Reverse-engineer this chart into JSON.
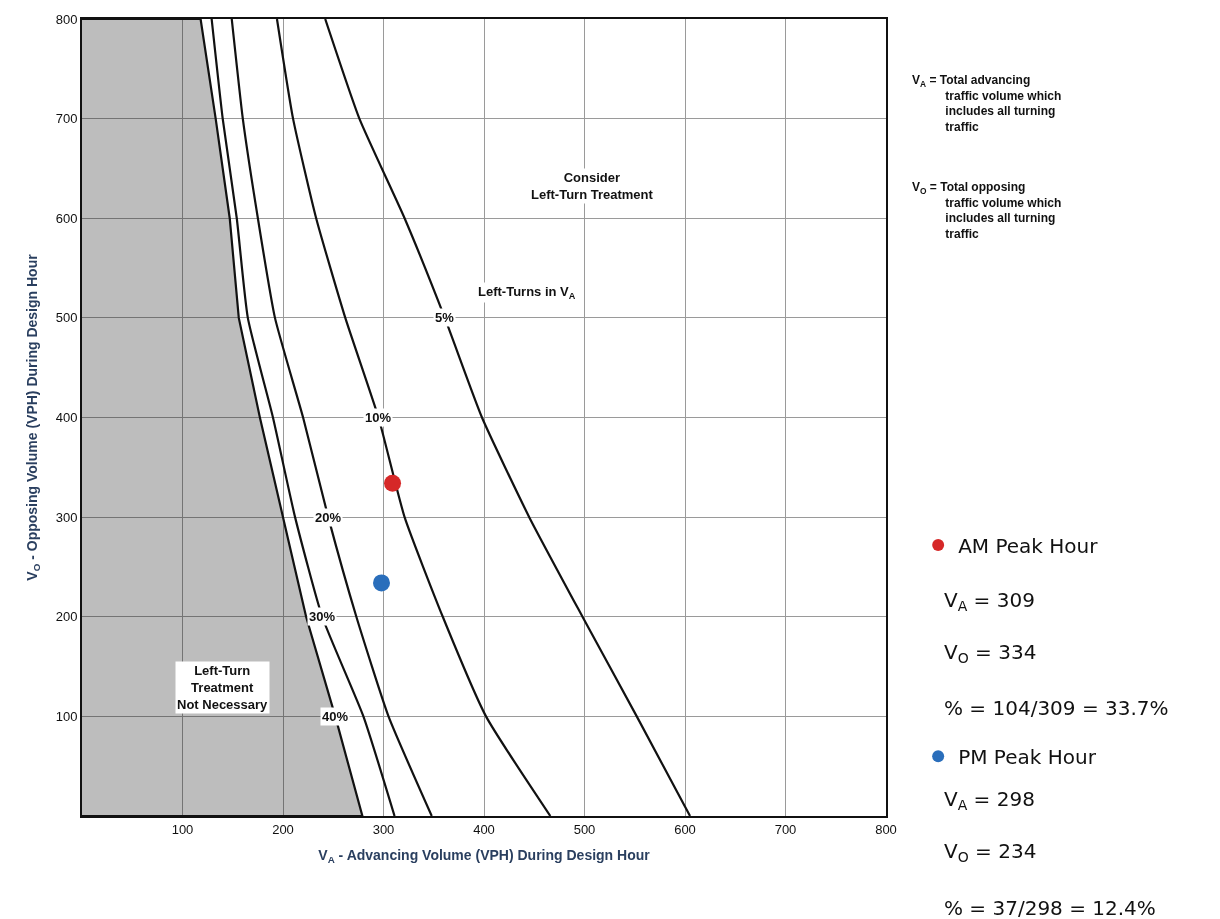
{
  "chart_data": {
    "type": "line",
    "xlabel": "V$_{A}$ - Advancing Volume (VPH) During Design Hour",
    "ylabel": "V$_{O}$ - Opposing Volume (VPH) During Design Hour",
    "xlim": [
      0,
      800
    ],
    "ylim": [
      0,
      800
    ],
    "xticks": [
      {
        "value": 0,
        "label": null
      },
      100,
      200,
      300,
      400,
      500,
      600,
      700,
      800
    ],
    "yticks": [
      {
        "value": 0,
        "label": null
      },
      100,
      200,
      300,
      400,
      500,
      600,
      700,
      800
    ],
    "grid": true,
    "legend": "right",
    "marker": "none",
    "series": [
      {
        "name": "5%",
        "color": "#111111",
        "x": [
          242,
          276,
          321,
          361,
          398,
          445,
          498,
          552,
          605
        ],
        "values": [
          800,
          700,
          600,
          500,
          400,
          300,
          200,
          100,
          0
        ]
      },
      {
        "name": "10%",
        "color": "#111111",
        "x": [
          194,
          210,
          233,
          262,
          295,
          321,
          359,
          402,
          466
        ],
        "values": [
          800,
          700,
          600,
          500,
          400,
          300,
          200,
          100,
          0
        ]
      },
      {
        "name": "20%",
        "color": "#111111",
        "x": [
          149,
          160,
          175,
          192,
          220,
          245,
          273,
          305,
          348
        ],
        "values": [
          800,
          700,
          600,
          500,
          400,
          300,
          200,
          100,
          0
        ]
      },
      {
        "name": "30%",
        "color": "#111111",
        "x": [
          129,
          140,
          154,
          165,
          190,
          212,
          239,
          280,
          311
        ],
        "values": [
          800,
          700,
          600,
          500,
          400,
          300,
          200,
          100,
          0
        ]
      },
      {
        "name": "40%",
        "type": "area",
        "color": "#111111",
        "x": [
          0,
          118,
          133,
          147,
          156,
          177,
          200,
          223,
          252,
          279,
          0
        ],
        "values": [
          800,
          800,
          700,
          600,
          500,
          400,
          300,
          200,
          100,
          0,
          0
        ]
      },
      {
        "name": "AM Peak Hour",
        "type": "scatter",
        "marker": "circle",
        "color": "#d62828",
        "x": [
          309
        ],
        "values": [
          334
        ]
      },
      {
        "name": "PM Peak Hour",
        "type": "scatter",
        "marker": "circle",
        "color": "#2a6ebb",
        "x": [
          298
        ],
        "values": [
          234
        ]
      }
    ],
    "annotations": [
      "Consider\nLeft-Turn Treatment",
      "Left-Turns in V$_{A}$",
      "Left-Turn\nTreatment\nNot Necessary",
      "V$_{A}$ = Total advancing\ntraffic volume which\nincludes all turning\ntraffic",
      "V$_{O}$ = Total opposing\ntraffic volume which\nincludes all turning\ntraffic",
      "V$_{A}$ = 309",
      "V$_{O}$ = 334",
      "% = 104/309 = 33.7%",
      "V$_{A}$ = 298",
      "V$_{O}$ = 234",
      "% = 37/298 = 12.4%"
    ]
  }
}
